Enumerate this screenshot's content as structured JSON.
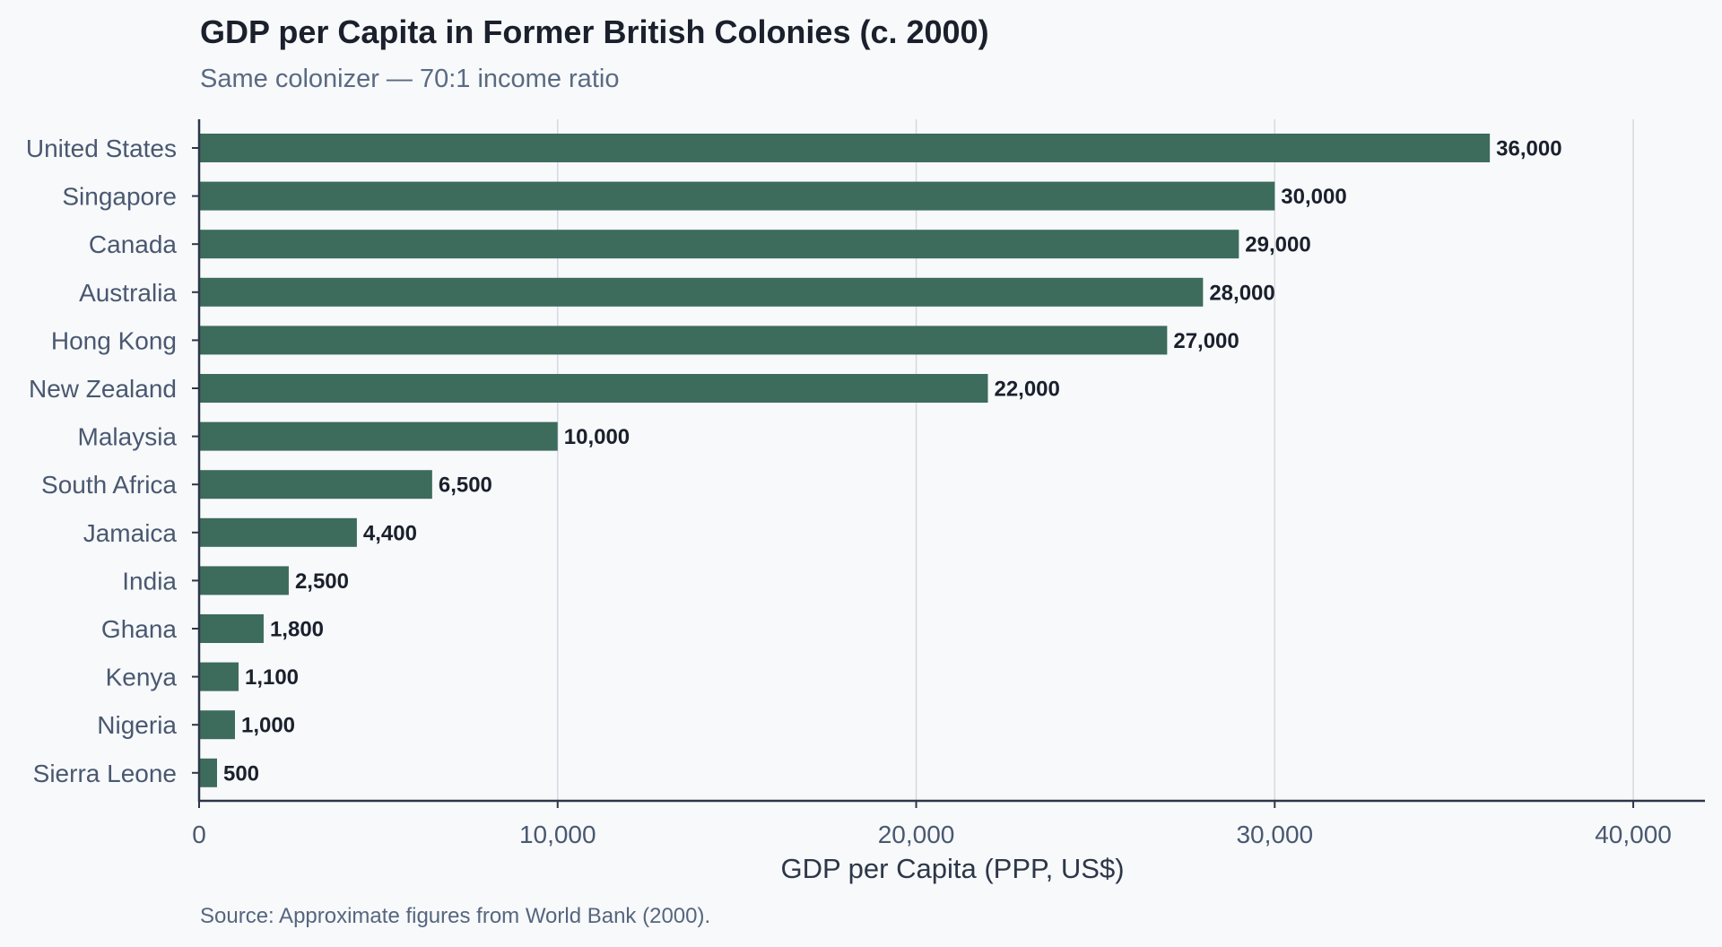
{
  "title": "GDP per Capita in Former British Colonies (c. 2000)",
  "subtitle": "Same colonizer — 70:1 income ratio",
  "source": "Source: Approximate figures from World Bank (2000).",
  "colors": {
    "bar": "#3d6b5c",
    "background": "#f7f9fb",
    "grid": "#d5dae1",
    "axis": "#2d3748"
  },
  "chart_data": {
    "type": "bar",
    "orientation": "horizontal",
    "title": "GDP per Capita in Former British Colonies (c. 2000)",
    "subtitle": "Same colonizer — 70:1 income ratio",
    "xlabel": "GDP per Capita (PPP, US$)",
    "ylabel": "",
    "categories": [
      "United States",
      "Singapore",
      "Canada",
      "Australia",
      "Hong Kong",
      "New Zealand",
      "Malaysia",
      "South Africa",
      "Jamaica",
      "India",
      "Ghana",
      "Kenya",
      "Nigeria",
      "Sierra Leone"
    ],
    "values": [
      36000,
      30000,
      29000,
      28000,
      27000,
      22000,
      10000,
      6500,
      4400,
      2500,
      1800,
      1100,
      1000,
      500
    ],
    "value_labels": [
      "36,000",
      "30,000",
      "29,000",
      "28,000",
      "27,000",
      "22,000",
      "10,000",
      "6,500",
      "4,400",
      "2,500",
      "1,800",
      "1,100",
      "1,000",
      "500"
    ],
    "xlim": [
      0,
      42000
    ],
    "xticks": [
      0,
      10000,
      20000,
      30000,
      40000
    ],
    "xtick_labels": [
      "0",
      "10,000",
      "20,000",
      "30,000",
      "40,000"
    ],
    "grid": "vertical",
    "legend": "none"
  }
}
